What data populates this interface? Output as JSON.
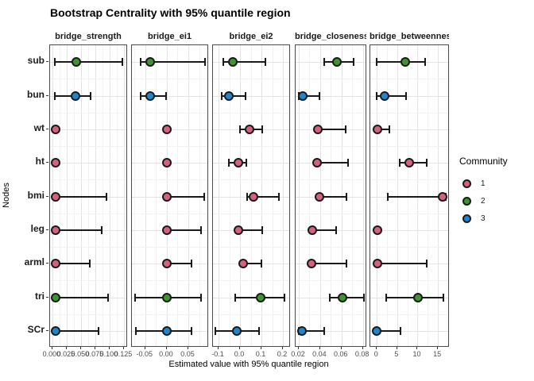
{
  "chart_data": {
    "type": "pointrange",
    "title": "Bootstrap Centrality with 95% quantile region",
    "xlabel": "Estimated value with 95% quantile region",
    "ylabel": "Nodes",
    "grid": true,
    "legend": {
      "title": "Community",
      "position": "right",
      "items": [
        {
          "label": "1",
          "color": "#d4627f"
        },
        {
          "label": "2",
          "color": "#3e942e"
        },
        {
          "label": "3",
          "color": "#2185ce"
        }
      ]
    },
    "nodes": [
      "sub",
      "bun",
      "wt",
      "ht",
      "bmi",
      "leg",
      "arml",
      "tri",
      "SCr"
    ],
    "node_community": [
      2,
      3,
      1,
      1,
      1,
      1,
      1,
      2,
      3
    ],
    "facets": [
      {
        "label": "bridge_strength",
        "x_range": [
          -0.004,
          0.132
        ],
        "ticks": [
          {
            "label": "0.000",
            "value": 0.0
          },
          {
            "label": "0.025",
            "value": 0.025
          },
          {
            "label": "0.050",
            "value": 0.05
          },
          {
            "label": "0.075",
            "value": 0.075
          },
          {
            "label": "0.100",
            "value": 0.1
          },
          {
            "label": "0.125",
            "value": 0.125
          }
        ],
        "points": [
          {
            "node": "sub",
            "community": 2,
            "value": 0.042,
            "lo": 0.005,
            "hi": 0.122
          },
          {
            "node": "bun",
            "community": 3,
            "value": 0.04,
            "lo": 0.005,
            "hi": 0.067
          },
          {
            "node": "wt",
            "community": 1,
            "value": 0.006,
            "lo": 0.006,
            "hi": 0.006
          },
          {
            "node": "ht",
            "community": 1,
            "value": 0.006,
            "lo": 0.006,
            "hi": 0.006
          },
          {
            "node": "bmi",
            "community": 1,
            "value": 0.006,
            "lo": 0.005,
            "hi": 0.094
          },
          {
            "node": "leg",
            "community": 1,
            "value": 0.006,
            "lo": 0.005,
            "hi": 0.086
          },
          {
            "node": "arml",
            "community": 1,
            "value": 0.006,
            "lo": 0.005,
            "hi": 0.065
          },
          {
            "node": "tri",
            "community": 2,
            "value": 0.006,
            "lo": 0.005,
            "hi": 0.097
          },
          {
            "node": "SCr",
            "community": 3,
            "value": 0.006,
            "lo": 0.005,
            "hi": 0.081
          }
        ]
      },
      {
        "label": "bridge_ei1",
        "x_range": [
          -0.081,
          0.098
        ],
        "ticks": [
          {
            "label": "-0.05",
            "value": -0.05
          },
          {
            "label": "0.00",
            "value": 0.0
          },
          {
            "label": "0.05",
            "value": 0.05
          }
        ],
        "points": [
          {
            "node": "sub",
            "community": 2,
            "value": -0.039,
            "lo": -0.06,
            "hi": 0.088
          },
          {
            "node": "bun",
            "community": 3,
            "value": -0.039,
            "lo": -0.06,
            "hi": -0.002
          },
          {
            "node": "wt",
            "community": 1,
            "value": 0.0,
            "lo": 0.0,
            "hi": 0.0
          },
          {
            "node": "ht",
            "community": 1,
            "value": 0.0,
            "lo": 0.0,
            "hi": 0.0
          },
          {
            "node": "bmi",
            "community": 1,
            "value": 0.0,
            "lo": 0.0,
            "hi": 0.087
          },
          {
            "node": "leg",
            "community": 1,
            "value": 0.0,
            "lo": 0.0,
            "hi": 0.079
          },
          {
            "node": "arml",
            "community": 1,
            "value": 0.0,
            "lo": 0.0,
            "hi": 0.058
          },
          {
            "node": "tri",
            "community": 2,
            "value": 0.0,
            "lo": -0.073,
            "hi": 0.079
          },
          {
            "node": "SCr",
            "community": 3,
            "value": 0.0,
            "lo": -0.072,
            "hi": 0.058
          }
        ]
      },
      {
        "label": "bridge_ei2",
        "x_range": [
          -0.126,
          0.237
        ],
        "ticks": [
          {
            "label": "-0.1",
            "value": -0.1
          },
          {
            "label": "0.0",
            "value": 0.0
          },
          {
            "label": "0.1",
            "value": 0.1
          },
          {
            "label": "0.2",
            "value": 0.2
          }
        ],
        "points": [
          {
            "node": "sub",
            "community": 2,
            "value": -0.034,
            "lo": -0.078,
            "hi": 0.12
          },
          {
            "node": "bun",
            "community": 3,
            "value": -0.053,
            "lo": -0.086,
            "hi": 0.027
          },
          {
            "node": "wt",
            "community": 1,
            "value": 0.043,
            "lo": 0.0,
            "hi": 0.105
          },
          {
            "node": "ht",
            "community": 1,
            "value": -0.006,
            "lo": -0.053,
            "hi": 0.031
          },
          {
            "node": "bmi",
            "community": 1,
            "value": 0.064,
            "lo": 0.033,
            "hi": 0.18
          },
          {
            "node": "leg",
            "community": 1,
            "value": -0.006,
            "lo": -0.006,
            "hi": 0.105
          },
          {
            "node": "arml",
            "community": 1,
            "value": 0.015,
            "lo": 0.015,
            "hi": 0.1
          },
          {
            "node": "tri",
            "community": 2,
            "value": 0.095,
            "lo": -0.022,
            "hi": 0.206
          },
          {
            "node": "SCr",
            "community": 3,
            "value": -0.016,
            "lo": -0.115,
            "hi": 0.089
          }
        ]
      },
      {
        "label": "bridge_closeness",
        "x_range": [
          0.017,
          0.084
        ],
        "ticks": [
          {
            "label": "0.02",
            "value": 0.02
          },
          {
            "label": "0.04",
            "value": 0.04
          },
          {
            "label": "0.06",
            "value": 0.06
          },
          {
            "label": "0.08",
            "value": 0.08
          }
        ],
        "points": [
          {
            "node": "sub",
            "community": 2,
            "value": 0.056,
            "lo": 0.044,
            "hi": 0.071
          },
          {
            "node": "bun",
            "community": 3,
            "value": 0.024,
            "lo": 0.02,
            "hi": 0.039
          },
          {
            "node": "wt",
            "community": 1,
            "value": 0.038,
            "lo": 0.038,
            "hi": 0.064
          },
          {
            "node": "ht",
            "community": 1,
            "value": 0.037,
            "lo": 0.037,
            "hi": 0.066
          },
          {
            "node": "bmi",
            "community": 1,
            "value": 0.039,
            "lo": 0.039,
            "hi": 0.065
          },
          {
            "node": "leg",
            "community": 1,
            "value": 0.033,
            "lo": 0.033,
            "hi": 0.055
          },
          {
            "node": "arml",
            "community": 1,
            "value": 0.032,
            "lo": 0.032,
            "hi": 0.065
          },
          {
            "node": "tri",
            "community": 2,
            "value": 0.061,
            "lo": 0.049,
            "hi": 0.081
          },
          {
            "node": "SCr",
            "community": 3,
            "value": 0.023,
            "lo": 0.02,
            "hi": 0.044
          }
        ]
      },
      {
        "label": "bridge_betweenness",
        "x_range": [
          -1.6,
          17.9
        ],
        "ticks": [
          {
            "label": "0",
            "value": 0
          },
          {
            "label": "5",
            "value": 5
          },
          {
            "label": "10",
            "value": 10
          },
          {
            "label": "15",
            "value": 15
          }
        ],
        "points": [
          {
            "node": "sub",
            "community": 2,
            "value": 7.0,
            "lo": 0.0,
            "hi": 11.9
          },
          {
            "node": "bun",
            "community": 3,
            "value": 1.9,
            "lo": 0.0,
            "hi": 7.1
          },
          {
            "node": "wt",
            "community": 1,
            "value": 0.2,
            "lo": 0.2,
            "hi": 3.0
          },
          {
            "node": "ht",
            "community": 1,
            "value": 8.0,
            "lo": 5.6,
            "hi": 12.3
          },
          {
            "node": "bmi",
            "community": 1,
            "value": 16.1,
            "lo": 2.7,
            "hi": 16.9
          },
          {
            "node": "leg",
            "community": 1,
            "value": 0.2,
            "lo": 0.2,
            "hi": 0.2
          },
          {
            "node": "arml",
            "community": 1,
            "value": 0.2,
            "lo": 0.2,
            "hi": 12.3
          },
          {
            "node": "tri",
            "community": 2,
            "value": 10.1,
            "lo": 2.3,
            "hi": 16.3
          },
          {
            "node": "SCr",
            "community": 3,
            "value": 0.0,
            "lo": 0.0,
            "hi": 5.9
          }
        ]
      }
    ]
  }
}
